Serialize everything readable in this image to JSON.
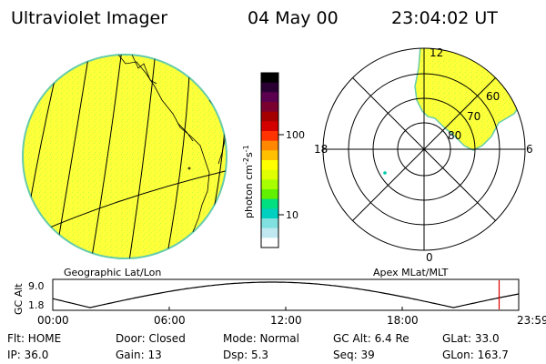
{
  "header": {
    "title": "Ultraviolet Imager",
    "date": "04 May 00",
    "time": "23:04:02 UT"
  },
  "colorbar": {
    "label_prefix": "photon cm",
    "label_exp1": "-2",
    "label_mid": "s",
    "label_exp2": "-1",
    "tick_100": "100",
    "tick_10": "10",
    "colors": [
      "#000000",
      "#2a0033",
      "#5a004f",
      "#7a0030",
      "#a40000",
      "#d40000",
      "#ff3300",
      "#ff8800",
      "#ffc000",
      "#ffff00",
      "#e0ff00",
      "#a8ff00",
      "#60f000",
      "#00e080",
      "#00d0c0",
      "#80e0e0",
      "#c0e8f0",
      "#ffffff"
    ]
  },
  "left_panel": {
    "label": "Geographic Lat/Lon",
    "fill_color": "#ffff3a"
  },
  "right_panel": {
    "label": "Apex MLat/MLT",
    "mlt_top": "12",
    "mlt_left": "18",
    "mlt_right": "6",
    "mlt_bottom": "0",
    "lat_60": "60",
    "lat_70": "70",
    "lat_80": "80"
  },
  "timeline": {
    "axis_label": "GC Alt",
    "y_top": "9.0",
    "y_bottom": "1.8",
    "x_ticks": [
      "00:00",
      "06:00",
      "12:00",
      "18:00",
      "23:59"
    ],
    "current_time_fraction": 0.958
  },
  "status": {
    "flt": "Flt: HOME",
    "door": "Door: Closed",
    "mode": "Mode: Normal",
    "gc_alt": "GC Alt: 6.4 Re",
    "glat": "GLat:  33.0",
    "ip": "IP: 36.0",
    "gain": "Gain: 13",
    "dsp": "Dsp:     5.3",
    "seq": "Seq: 39",
    "glon": "GLon: 163.7"
  }
}
